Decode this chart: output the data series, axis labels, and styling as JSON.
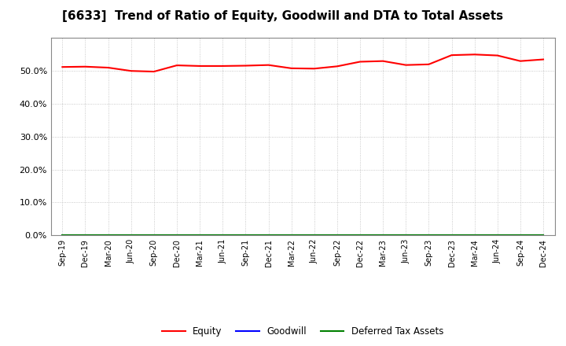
{
  "title": "[6633]  Trend of Ratio of Equity, Goodwill and DTA to Total Assets",
  "x_labels": [
    "Sep-19",
    "Dec-19",
    "Mar-20",
    "Jun-20",
    "Sep-20",
    "Dec-20",
    "Mar-21",
    "Jun-21",
    "Sep-21",
    "Dec-21",
    "Mar-22",
    "Jun-22",
    "Sep-22",
    "Dec-22",
    "Mar-23",
    "Jun-23",
    "Sep-23",
    "Dec-23",
    "Mar-24",
    "Jun-24",
    "Sep-24",
    "Dec-24"
  ],
  "equity": [
    51.2,
    51.3,
    51.0,
    50.0,
    49.8,
    51.7,
    51.5,
    51.5,
    51.6,
    51.8,
    50.8,
    50.7,
    51.4,
    52.8,
    53.0,
    51.8,
    52.0,
    54.8,
    55.0,
    54.7,
    53.0,
    53.5
  ],
  "goodwill": [
    0.0,
    0.0,
    0.0,
    0.0,
    0.0,
    0.0,
    0.0,
    0.0,
    0.0,
    0.0,
    0.0,
    0.0,
    0.0,
    0.0,
    0.0,
    0.0,
    0.0,
    0.0,
    0.0,
    0.0,
    0.0,
    0.0
  ],
  "dta": [
    0.0,
    0.0,
    0.0,
    0.0,
    0.0,
    0.0,
    0.0,
    0.0,
    0.0,
    0.0,
    0.0,
    0.0,
    0.0,
    0.0,
    0.0,
    0.0,
    0.0,
    0.0,
    0.0,
    0.0,
    0.0,
    0.0
  ],
  "equity_color": "#FF0000",
  "goodwill_color": "#0000FF",
  "dta_color": "#008000",
  "ylim": [
    0,
    60
  ],
  "yticks": [
    0,
    10,
    20,
    30,
    40,
    50
  ],
  "background_color": "#FFFFFF",
  "plot_bg_color": "#FFFFFF",
  "grid_color": "#AAAAAA",
  "title_fontsize": 11,
  "legend_labels": [
    "Equity",
    "Goodwill",
    "Deferred Tax Assets"
  ]
}
